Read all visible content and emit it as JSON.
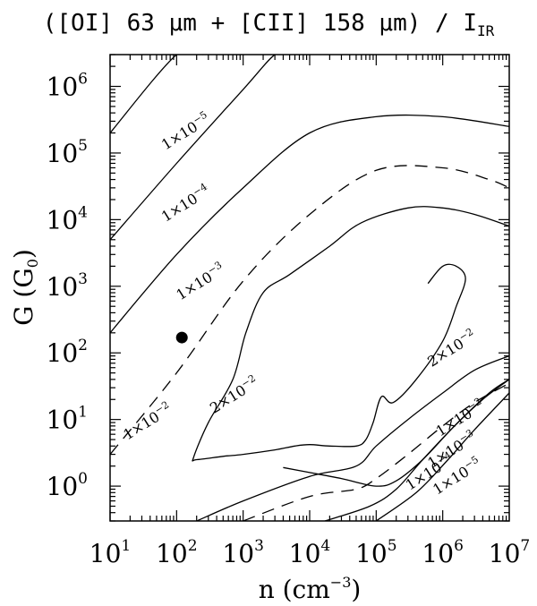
{
  "chart_data": {
    "type": "contour",
    "title": "([OI] 63 μm + [CII] 158 μm) / I",
    "title_subscript": "IR",
    "xlabel": "n (cm",
    "xlabel_exp": "−3",
    "xlabel_tail": ")",
    "ylabel": "G (G",
    "ylabel_sub": "0",
    "ylabel_tail": ")",
    "x_scale": "log",
    "y_scale": "log",
    "xlim": [
      10,
      10000000
    ],
    "ylim": [
      0.3,
      3000000
    ],
    "x_ticks": [
      {
        "value": 10,
        "base": "10",
        "exp": "1"
      },
      {
        "value": 100,
        "base": "10",
        "exp": "2"
      },
      {
        "value": 1000,
        "base": "10",
        "exp": "3"
      },
      {
        "value": 10000,
        "base": "10",
        "exp": "4"
      },
      {
        "value": 100000,
        "base": "10",
        "exp": "5"
      },
      {
        "value": 1000000,
        "base": "10",
        "exp": "6"
      },
      {
        "value": 10000000,
        "base": "10",
        "exp": "7"
      }
    ],
    "y_ticks": [
      {
        "value": 1,
        "base": "10",
        "exp": "0"
      },
      {
        "value": 10,
        "base": "10",
        "exp": "1"
      },
      {
        "value": 100,
        "base": "10",
        "exp": "2"
      },
      {
        "value": 1000,
        "base": "10",
        "exp": "3"
      },
      {
        "value": 10000,
        "base": "10",
        "exp": "4"
      },
      {
        "value": 100000,
        "base": "10",
        "exp": "5"
      },
      {
        "value": 1000000,
        "base": "10",
        "exp": "6"
      }
    ],
    "contours": [
      {
        "level": "1×10⁻⁵",
        "dashed": false,
        "points": [
          [
            10,
            200000
          ],
          [
            100,
            3000000
          ],
          [
            250,
            3000000
          ]
        ]
      },
      {
        "level": "1×10⁻⁴",
        "dashed": false,
        "points": [
          [
            10,
            5000
          ],
          [
            100,
            70000
          ],
          [
            1000,
            900000
          ],
          [
            3000,
            3000000
          ],
          [
            5000,
            3000000
          ]
        ]
      },
      {
        "level": "1×10⁻³",
        "dashed": false,
        "points": [
          [
            10,
            200
          ],
          [
            100,
            3000
          ],
          [
            1000,
            30000
          ],
          [
            10000,
            200000
          ],
          [
            100000,
            350000
          ],
          [
            1000000,
            350000
          ],
          [
            10000000,
            250000
          ]
        ]
      },
      {
        "level": "1×10⁻²",
        "dashed": true,
        "points": [
          [
            10,
            3
          ],
          [
            100,
            50
          ],
          [
            1000,
            1200
          ],
          [
            10000,
            12000
          ],
          [
            100000,
            55000
          ],
          [
            1000000,
            60000
          ],
          [
            5000000,
            40000
          ],
          [
            10000000,
            30000
          ]
        ]
      },
      {
        "level": "2×10⁻²",
        "dashed": false,
        "points": [
          [
            10000000,
            8000
          ],
          [
            3000000,
            12000
          ],
          [
            1000000,
            15000
          ],
          [
            300000,
            15000
          ],
          [
            60000,
            9000
          ],
          [
            20000,
            4000
          ],
          [
            5000,
            1500
          ],
          [
            2000,
            800
          ],
          [
            1100,
            200
          ],
          [
            700,
            40
          ],
          [
            300,
            9
          ],
          [
            180,
            2.7
          ],
          [
            200,
            2.5
          ],
          [
            500,
            2.8
          ],
          [
            1000,
            3.0
          ],
          [
            3000,
            3.5
          ],
          [
            6000,
            4.0
          ],
          [
            10000,
            4.2
          ],
          [
            20000,
            4.0
          ],
          [
            50000,
            4.0
          ],
          [
            70000,
            5
          ],
          [
            90000,
            9
          ],
          [
            120000,
            22
          ],
          [
            180000,
            18
          ],
          [
            400000,
            40
          ],
          [
            1000000,
            150
          ],
          [
            1600000,
            500
          ],
          [
            2200000,
            1300
          ],
          [
            1600000,
            2000
          ],
          [
            1000000,
            2000
          ],
          [
            600000,
            1100
          ]
        ]
      },
      {
        "level": "2×10⁻² (lower)",
        "dashed": false,
        "points": [
          [
            4000,
            1.9
          ],
          [
            10000,
            1.6
          ],
          [
            30000,
            1.3
          ],
          [
            100000,
            1.0
          ],
          [
            200000,
            1.2
          ],
          [
            500000,
            2.5
          ],
          [
            1500000,
            8
          ],
          [
            5000000,
            25
          ],
          [
            10000000,
            40
          ]
        ]
      },
      {
        "level": "1×10⁻² (lower)",
        "dashed": true,
        "points": [
          [
            1000,
            0.3
          ],
          [
            10000,
            0.7
          ],
          [
            50000,
            0.9
          ],
          [
            100000,
            1.3
          ],
          [
            300000,
            3
          ],
          [
            1000000,
            8
          ],
          [
            3000000,
            18
          ],
          [
            10000000,
            35
          ]
        ]
      },
      {
        "level": "1×10⁻³ (lower)",
        "dashed": false,
        "points": [
          [
            200,
            0.3
          ],
          [
            1000,
            0.6
          ],
          [
            10000,
            1.4
          ],
          [
            50000,
            2
          ],
          [
            100000,
            4
          ],
          [
            300000,
            10
          ],
          [
            1000000,
            25
          ],
          [
            3000000,
            55
          ],
          [
            10000000,
            90
          ]
        ]
      },
      {
        "level": "1×10⁻⁴ (lower)",
        "dashed": false,
        "points": [
          [
            17000,
            0.3
          ],
          [
            80000,
            0.5
          ],
          [
            200000,
            0.9
          ],
          [
            500000,
            2.5
          ],
          [
            1500000,
            8
          ],
          [
            4000000,
            20
          ],
          [
            10000000,
            40
          ]
        ]
      },
      {
        "level": "1×10⁻⁵ (lower)",
        "dashed": false,
        "points": [
          [
            100000,
            0.3
          ],
          [
            400000,
            0.8
          ],
          [
            1200000,
            2.5
          ],
          [
            3000000,
            7
          ],
          [
            10000000,
            25
          ]
        ]
      }
    ],
    "contour_labels": [
      {
        "mantissa": "1×10",
        "exp": "−5",
        "x": 150,
        "y": 180000
      },
      {
        "mantissa": "1×10",
        "exp": "−4",
        "x": 150,
        "y": 15000
      },
      {
        "mantissa": "1×10",
        "exp": "−3",
        "x": 250,
        "y": 1000
      },
      {
        "mantissa": "1×10",
        "exp": "−2",
        "x": 40,
        "y": 8
      },
      {
        "mantissa": "2×10",
        "exp": "−2",
        "x": 800,
        "y": 20
      },
      {
        "mantissa": "2×10",
        "exp": "−2",
        "x": 1500000,
        "y": 100
      },
      {
        "mantissa": "1×10",
        "exp": "−2",
        "x": 2000000,
        "y": 9
      },
      {
        "mantissa": "1×10",
        "exp": "−3",
        "x": 1500000,
        "y": 3
      },
      {
        "mantissa": "1×10",
        "exp": "−4",
        "x": 700000,
        "y": 1.4
      },
      {
        "mantissa": "1×10",
        "exp": "−5",
        "x": 1800000,
        "y": 1.2
      }
    ],
    "marker": {
      "x": 120,
      "y": 170
    }
  }
}
